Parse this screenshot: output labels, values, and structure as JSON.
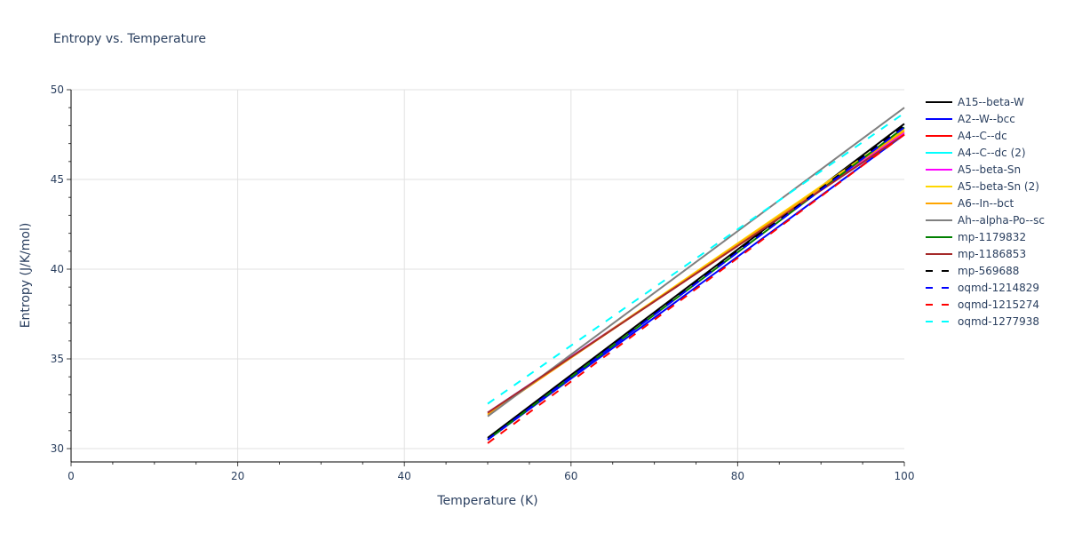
{
  "chart_data": {
    "type": "line",
    "title": "Entropy vs. Temperature",
    "xlabel": "Temperature (K)",
    "ylabel": "Entropy (J/K/mol)",
    "xlim": [
      0,
      100
    ],
    "ylim": [
      29.2,
      50
    ],
    "x_ticks": [
      0,
      20,
      40,
      60,
      80,
      100
    ],
    "y_ticks": [
      30,
      35,
      40,
      45,
      50
    ],
    "grid": true,
    "legend_position": "right",
    "x": [
      50,
      100
    ],
    "series": [
      {
        "name": "A15--beta-W",
        "color": "#000000",
        "dash": "solid",
        "values": [
          30.6,
          48.1
        ]
      },
      {
        "name": "A2--W--bcc",
        "color": "#0000ff",
        "dash": "solid",
        "values": [
          30.5,
          47.5
        ]
      },
      {
        "name": "A4--C--dc",
        "color": "#ff0000",
        "dash": "solid",
        "values": [
          32.0,
          47.5
        ]
      },
      {
        "name": "A4--C--dc (2)",
        "color": "#00ffff",
        "dash": "solid",
        "values": [
          32.0,
          47.6
        ]
      },
      {
        "name": "A5--beta-Sn",
        "color": "#ff00ff",
        "dash": "solid",
        "values": [
          32.0,
          47.6
        ]
      },
      {
        "name": "A5--beta-Sn (2)",
        "color": "#ffd700",
        "dash": "solid",
        "values": [
          31.9,
          47.8
        ]
      },
      {
        "name": "A6--In--bct",
        "color": "#ffa500",
        "dash": "solid",
        "values": [
          31.9,
          47.7
        ]
      },
      {
        "name": "Ah--alpha-Po--sc",
        "color": "#808080",
        "dash": "solid",
        "values": [
          31.8,
          49.0
        ]
      },
      {
        "name": "mp-1179832",
        "color": "#008000",
        "dash": "solid",
        "values": [
          30.5,
          47.9
        ]
      },
      {
        "name": "mp-1186853",
        "color": "#a52a2a",
        "dash": "solid",
        "values": [
          32.0,
          47.5
        ]
      },
      {
        "name": "mp-569688",
        "color": "#000000",
        "dash": "dash",
        "values": [
          30.5,
          48.0
        ]
      },
      {
        "name": "oqmd-1214829",
        "color": "#0000ff",
        "dash": "dash",
        "values": [
          30.5,
          47.9
        ]
      },
      {
        "name": "oqmd-1215274",
        "color": "#ff0000",
        "dash": "dash",
        "values": [
          30.3,
          47.5
        ]
      },
      {
        "name": "oqmd-1277938",
        "color": "#00ffff",
        "dash": "dash",
        "values": [
          32.5,
          48.7
        ]
      }
    ]
  }
}
